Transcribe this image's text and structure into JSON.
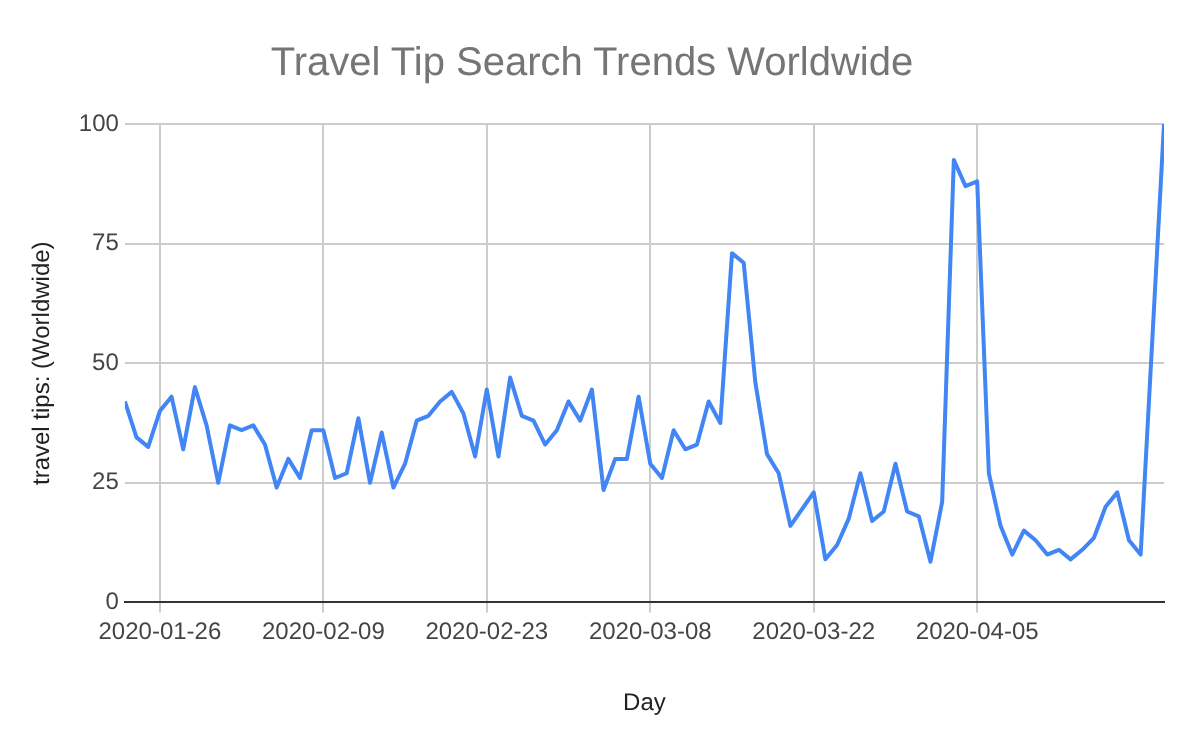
{
  "chart_data": {
    "type": "line",
    "title": "Travel Tip Search Trends Worldwide",
    "xlabel": "Day",
    "ylabel": "travel tips: (Worldwide)",
    "x": [
      "2020-01-23",
      "2020-01-24",
      "2020-01-25",
      "2020-01-26",
      "2020-01-27",
      "2020-01-28",
      "2020-01-29",
      "2020-01-30",
      "2020-01-31",
      "2020-02-01",
      "2020-02-02",
      "2020-02-03",
      "2020-02-04",
      "2020-02-05",
      "2020-02-06",
      "2020-02-07",
      "2020-02-08",
      "2020-02-09",
      "2020-02-10",
      "2020-02-11",
      "2020-02-12",
      "2020-02-13",
      "2020-02-14",
      "2020-02-15",
      "2020-02-16",
      "2020-02-17",
      "2020-02-18",
      "2020-02-19",
      "2020-02-20",
      "2020-02-21",
      "2020-02-22",
      "2020-02-23",
      "2020-02-24",
      "2020-02-25",
      "2020-02-26",
      "2020-02-27",
      "2020-02-28",
      "2020-02-29",
      "2020-03-01",
      "2020-03-02",
      "2020-03-03",
      "2020-03-04",
      "2020-03-05",
      "2020-03-06",
      "2020-03-07",
      "2020-03-08",
      "2020-03-09",
      "2020-03-10",
      "2020-03-11",
      "2020-03-12",
      "2020-03-13",
      "2020-03-14",
      "2020-03-15",
      "2020-03-16",
      "2020-03-17",
      "2020-03-18",
      "2020-03-19",
      "2020-03-20",
      "2020-03-21",
      "2020-03-22",
      "2020-03-23",
      "2020-03-24",
      "2020-03-25",
      "2020-03-26",
      "2020-03-27",
      "2020-03-28",
      "2020-03-29",
      "2020-03-30",
      "2020-03-31",
      "2020-04-01",
      "2020-04-02",
      "2020-04-03",
      "2020-04-04",
      "2020-04-05",
      "2020-04-06",
      "2020-04-07",
      "2020-04-08",
      "2020-04-09",
      "2020-04-10",
      "2020-04-11",
      "2020-04-12",
      "2020-04-13",
      "2020-04-14",
      "2020-04-15",
      "2020-04-16",
      "2020-04-17",
      "2020-04-18",
      "2020-04-19",
      "2020-04-20",
      "2020-04-21"
    ],
    "series": [
      {
        "color": "#4285f4",
        "values": [
          42,
          34.5,
          32.5,
          40,
          43,
          32,
          45,
          37,
          25,
          37,
          36,
          37,
          33,
          24,
          30,
          26,
          36,
          36,
          26,
          27,
          38.5,
          25,
          35.5,
          24,
          29,
          38,
          39,
          42,
          44,
          39.5,
          30.5,
          44.5,
          30.5,
          47,
          39,
          38,
          33,
          36,
          42,
          38,
          44.5,
          23.5,
          30,
          30,
          43,
          29,
          26,
          36,
          32,
          33,
          42,
          37.5,
          73,
          71,
          46,
          31,
          27,
          16,
          19.5,
          23,
          9,
          12,
          17.5,
          27,
          17,
          19,
          29,
          19,
          18,
          8.5,
          21,
          92.5,
          87,
          88,
          27,
          16,
          10,
          15,
          13,
          10,
          11,
          9,
          11,
          13.5,
          20,
          23,
          13,
          10,
          55,
          100
        ]
      }
    ],
    "xlim": [
      "2020-01-23",
      "2020-04-21"
    ],
    "xticks": [
      "2020-01-26",
      "2020-02-09",
      "2020-02-23",
      "2020-03-08",
      "2020-03-22",
      "2020-04-05"
    ],
    "ylim": [
      0,
      100
    ],
    "yticks": [
      0,
      25,
      50,
      75,
      100
    ],
    "grid": true,
    "marker": "none",
    "line_style": "solid"
  }
}
